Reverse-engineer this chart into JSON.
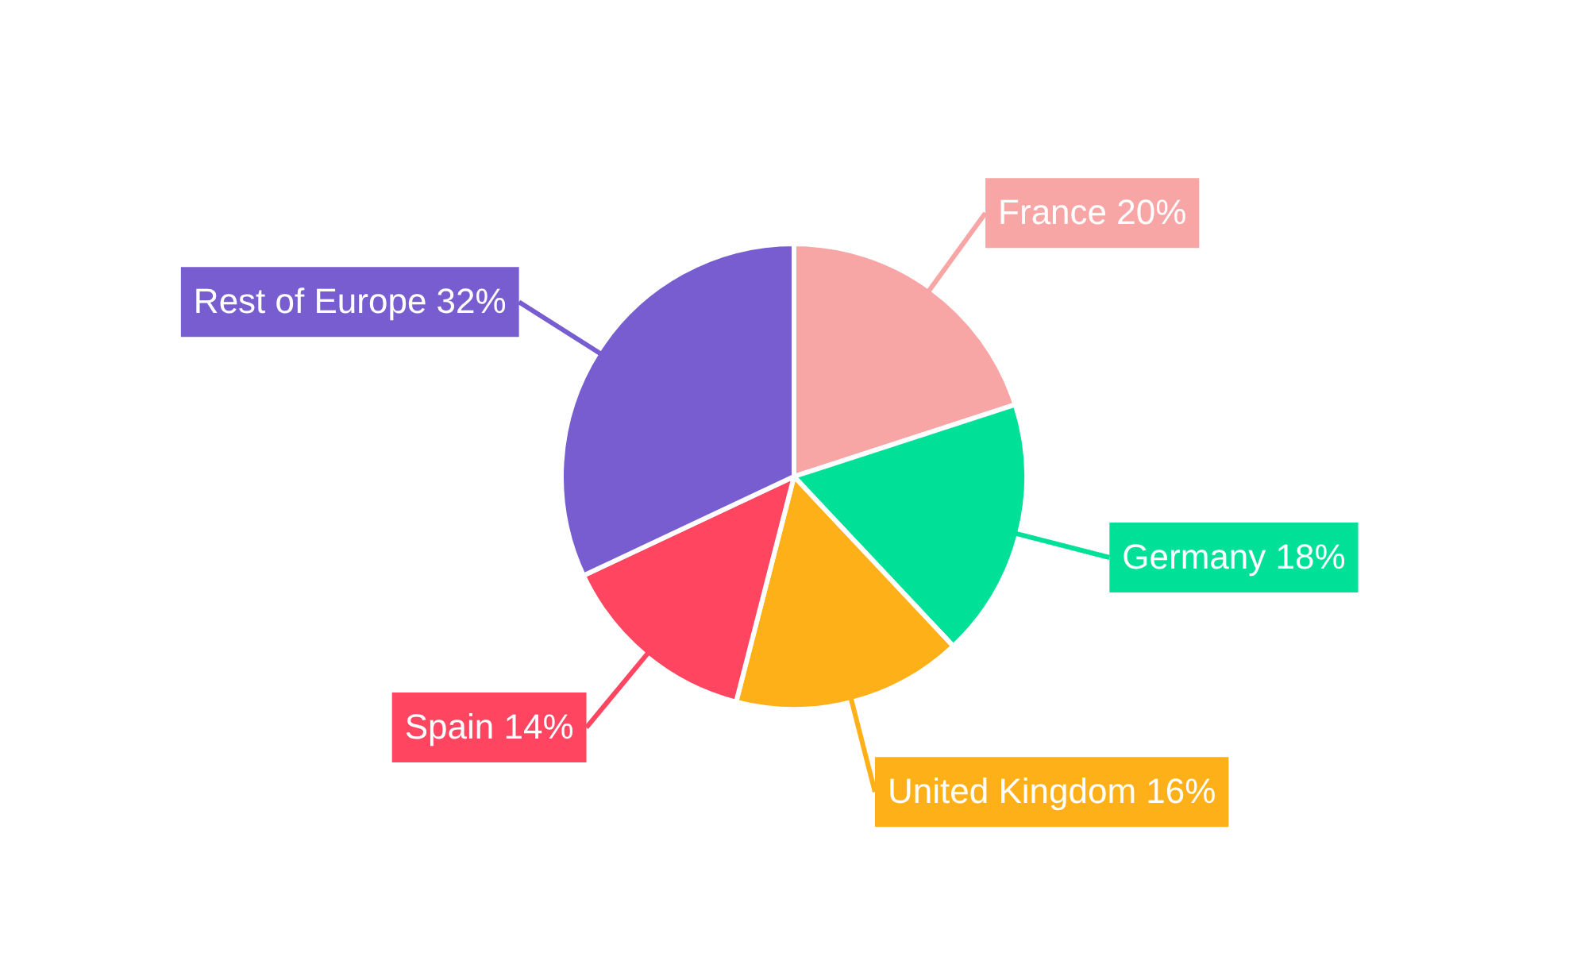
{
  "chart_data": {
    "type": "pie",
    "categories": [
      "France",
      "Germany",
      "United Kingdom",
      "Spain",
      "Rest of Europe"
    ],
    "values": [
      20,
      18,
      16,
      14,
      32
    ],
    "value_labels": [
      "20%",
      "18%",
      "16%",
      "14%",
      "32%"
    ],
    "colors": [
      "#f8a5a5",
      "#00e096",
      "#feb019",
      "#ff4560",
      "#775dd0"
    ],
    "legend": false
  }
}
